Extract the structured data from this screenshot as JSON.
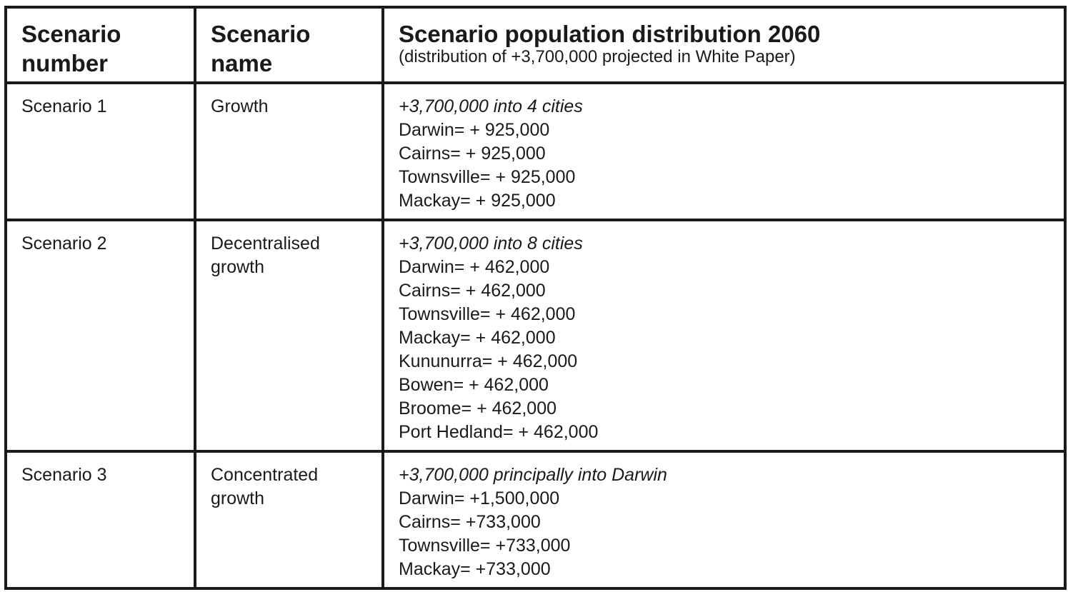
{
  "header": {
    "col1": "Scenario number",
    "col2": "Scenario name",
    "col3_title": "Scenario population distribution 2060",
    "col3_subtitle": "(distribution of +3,700,000 projected in White Paper)"
  },
  "rows": [
    {
      "number": "Scenario 1",
      "name": "Growth",
      "intro": "+3,700,000 into 4 cities",
      "lines": [
        "Darwin= + 925,000",
        "Cairns= + 925,000",
        "Townsville= + 925,000",
        "Mackay= + 925,000"
      ]
    },
    {
      "number": "Scenario 2",
      "name": "Decentralised growth",
      "intro": "+3,700,000 into 8 cities",
      "lines": [
        "Darwin= + 462,000",
        "Cairns= + 462,000",
        "Townsville= + 462,000",
        "Mackay= + 462,000",
        "Kununurra= + 462,000",
        "Bowen= + 462,000",
        "Broome= + 462,000",
        "Port Hedland= + 462,000"
      ]
    },
    {
      "number": "Scenario 3",
      "name": "Concentrated growth",
      "intro": "+3,700,000 principally into Darwin",
      "lines": [
        "Darwin= +1,500,000",
        "Cairns= +733,000",
        "Townsville= +733,000",
        "Mackay= +733,000"
      ]
    }
  ]
}
